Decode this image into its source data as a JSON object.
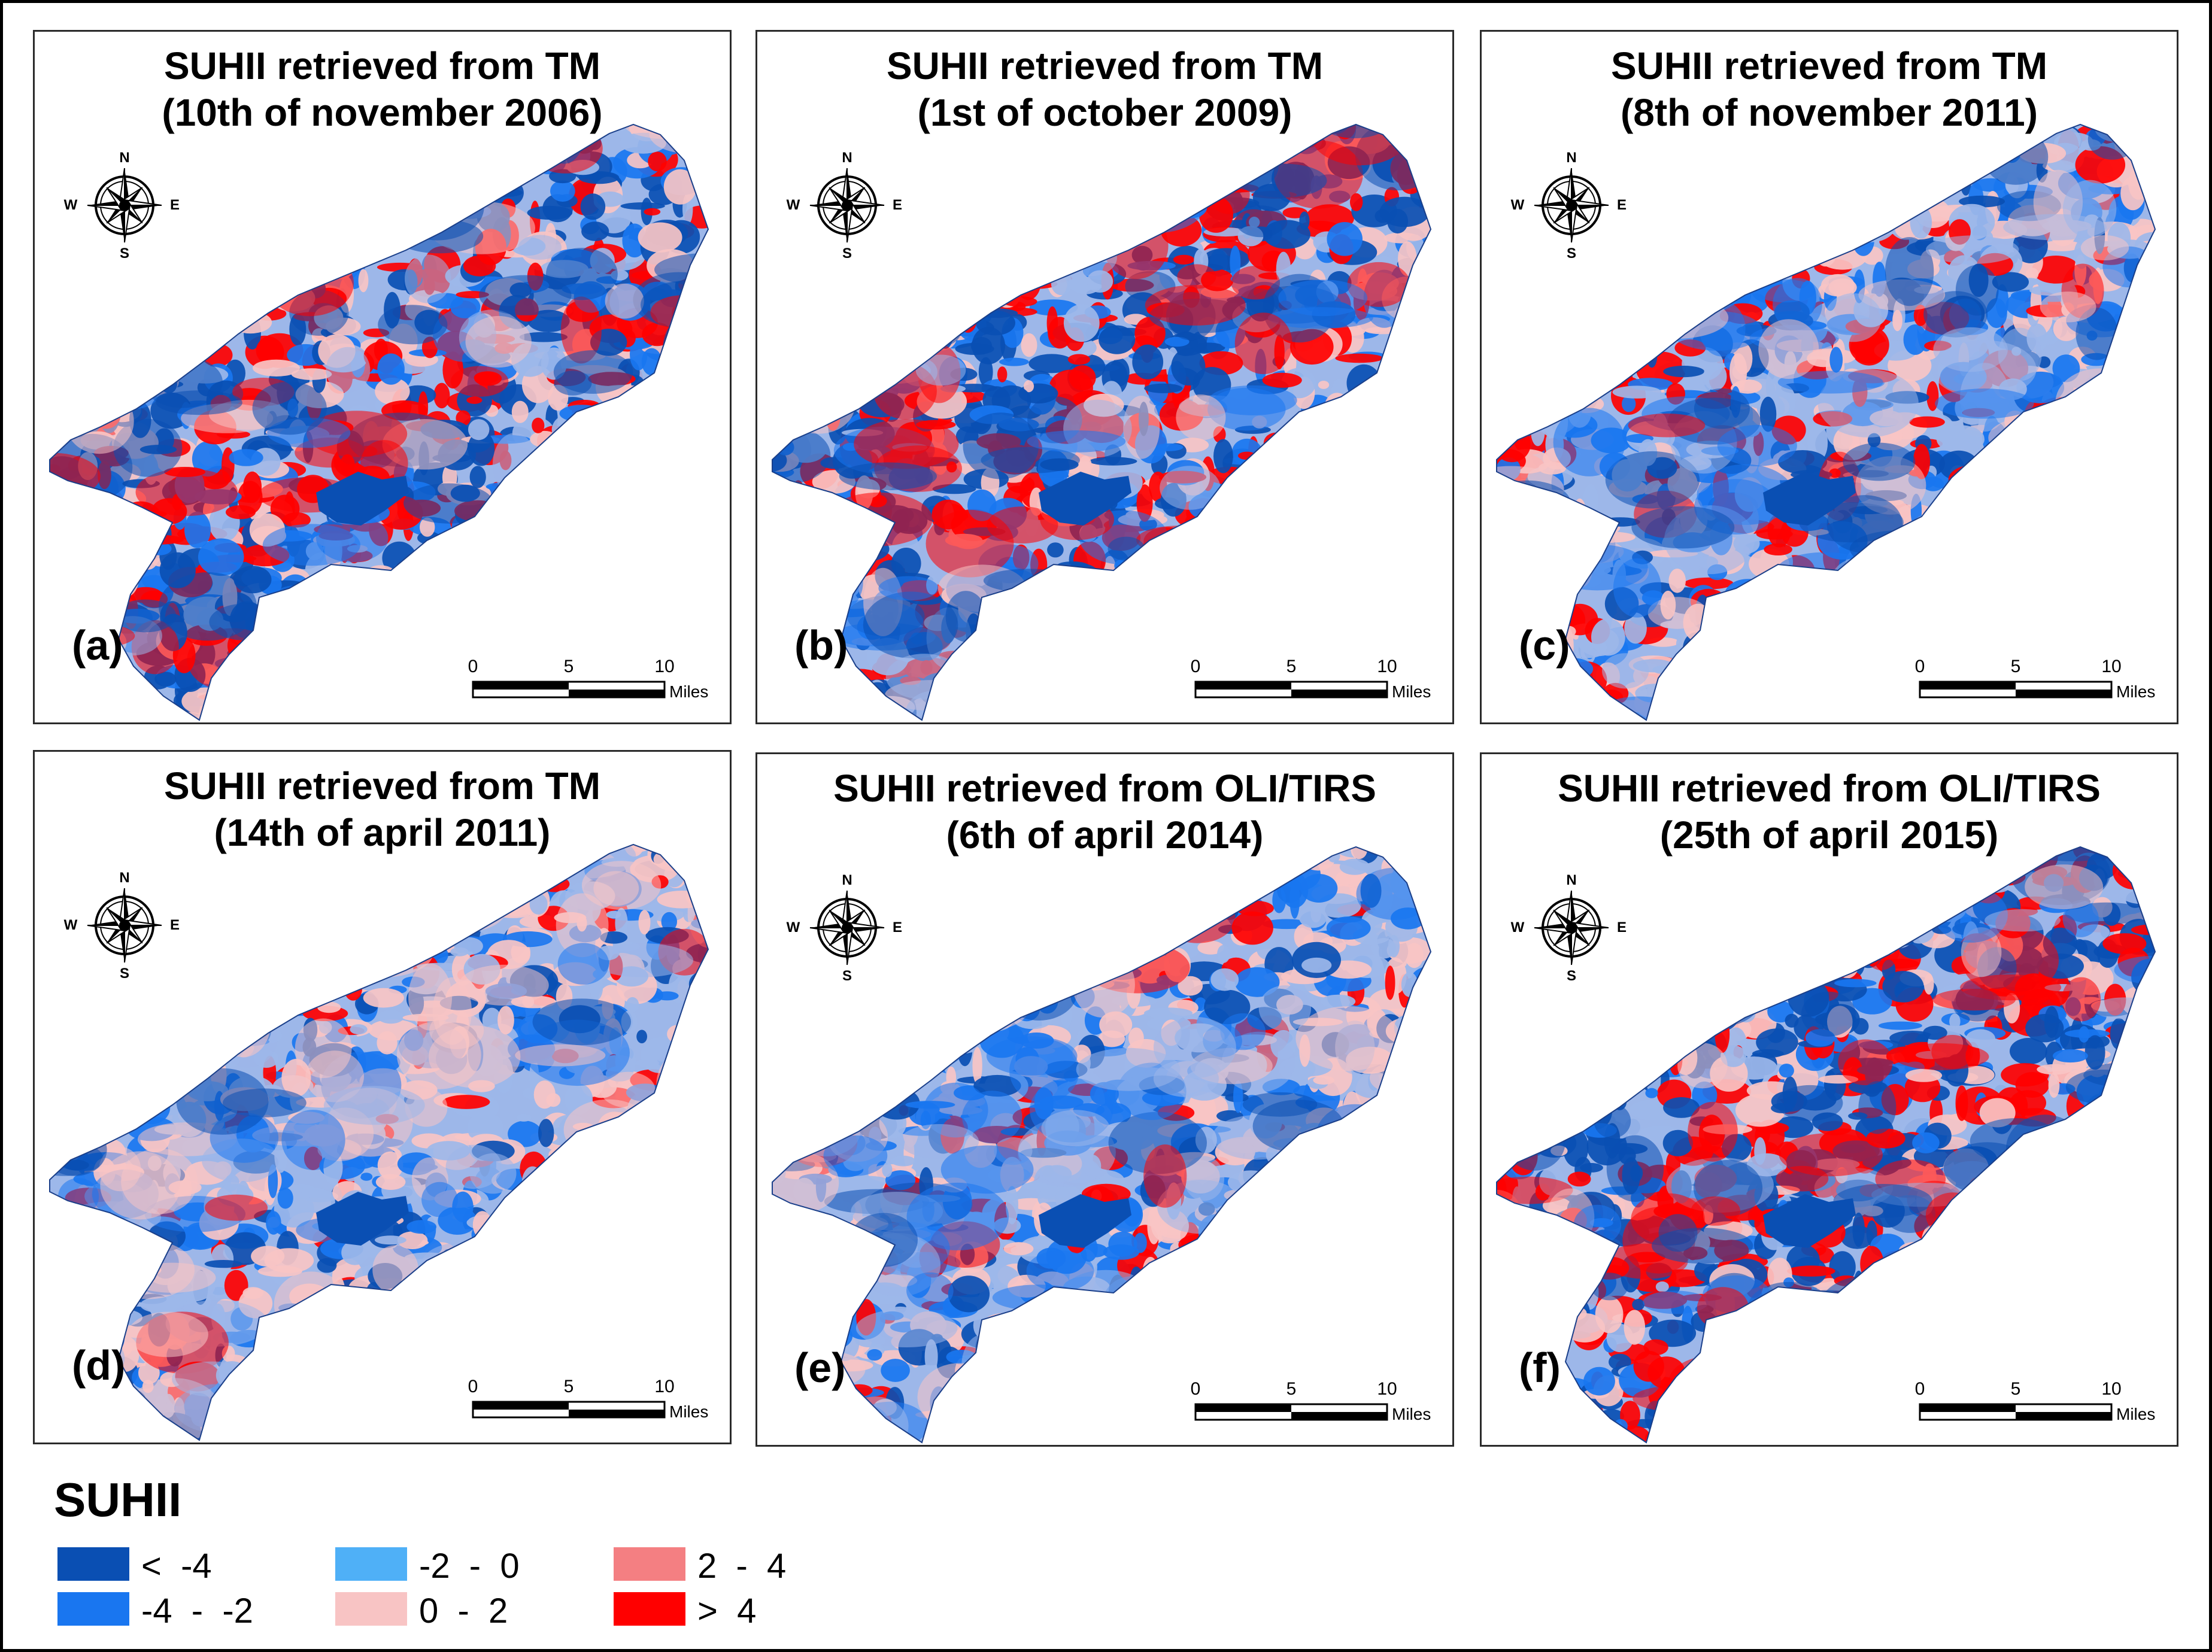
{
  "panels": [
    {
      "id": "a",
      "title_line1": "SUHII retrieved from TM",
      "title_line2": "(10th of november 2006)",
      "label": "(a)",
      "mix": [
        0.28,
        0.14,
        0.1,
        0.18,
        0.3
      ]
    },
    {
      "id": "b",
      "title_line1": "SUHII retrieved from TM",
      "title_line2": "(1st of october 2009)",
      "label": "(b)",
      "mix": [
        0.3,
        0.18,
        0.1,
        0.16,
        0.26
      ]
    },
    {
      "id": "c",
      "title_line1": "SUHII retrieved from TM",
      "title_line2": "(8th of november 2011)",
      "label": "(c)",
      "mix": [
        0.16,
        0.2,
        0.25,
        0.24,
        0.15
      ]
    },
    {
      "id": "d",
      "title_line1": "SUHII retrieved from TM",
      "title_line2": "(14th of april 2011)",
      "label": "(d)",
      "mix": [
        0.12,
        0.22,
        0.3,
        0.28,
        0.08
      ]
    },
    {
      "id": "e",
      "title_line1": "SUHII retrieved from OLI/TIRS",
      "title_line2": "(6th of april 2014)",
      "label": "(e)",
      "mix": [
        0.1,
        0.22,
        0.3,
        0.28,
        0.1
      ]
    },
    {
      "id": "f",
      "title_line1": "SUHII retrieved from OLI/TIRS",
      "title_line2": "(25th of april 2015)",
      "label": "(f)",
      "mix": [
        0.32,
        0.14,
        0.1,
        0.14,
        0.3
      ]
    }
  ],
  "compass": {
    "n": "N",
    "s": "S",
    "e": "E",
    "w": "W"
  },
  "scalebar": {
    "tick0": "0",
    "tick5": "5",
    "tick10": "10",
    "unit": "Miles"
  },
  "legend": {
    "title": "SUHII",
    "items": [
      {
        "label": "<  -4",
        "color": "#0a4fb3"
      },
      {
        "label": "-4  -  -2",
        "color": "#1976f0"
      },
      {
        "label": "-2  -  0",
        "color": "#4fb0f7"
      },
      {
        "label": "0  -  2",
        "color": "#f8c4c4"
      },
      {
        "label": "2  -  4",
        "color": "#f47f82"
      },
      {
        "label": ">  4",
        "color": "#ff0000"
      }
    ]
  },
  "colors": {
    "very_cold": "#0a4fb3",
    "cold": "#1976f0",
    "cool": "#9db7e9",
    "warm": "#f8c4c4",
    "hot": "#f47f82",
    "very_hot": "#ff0000"
  }
}
